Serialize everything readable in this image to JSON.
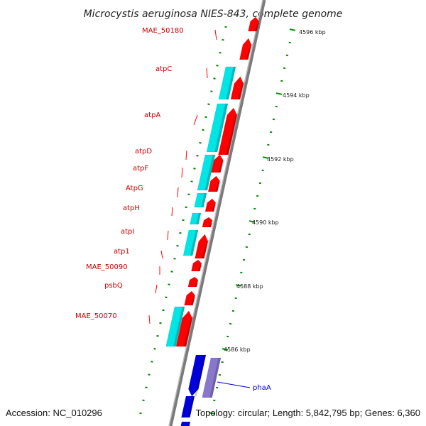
{
  "title": "Microcystis aeruginosa NIES-843, complete genome",
  "footer": {
    "accession": "Accession: NC_010296",
    "topology": "Topology: circular; Length: 5,842,795 bp; Genes: 6,360"
  },
  "colors": {
    "forward": "#ff0000",
    "reverse_cyan": "#00e5e5",
    "forward_blue": "#0000dd",
    "reverse_violet": "#8877cc",
    "tick": "#008800",
    "backbone": "#7a7a7a",
    "label_red": "#cc0000",
    "label_blue": "#0000cc"
  },
  "kbp_ticks": [
    "4596 kbp",
    "4594 kbp",
    "4592 kbp",
    "4590 kbp",
    "4588 kbp",
    "4586 kbp"
  ],
  "gene_labels": [
    "MAE_50180",
    "atpC",
    "atpA",
    "atpD",
    "atpF",
    "AtpG",
    "atpH",
    "atpI",
    "atp1",
    "MAE_50090",
    "psbQ",
    "MAE_50070"
  ],
  "blue_label": "phaA"
}
